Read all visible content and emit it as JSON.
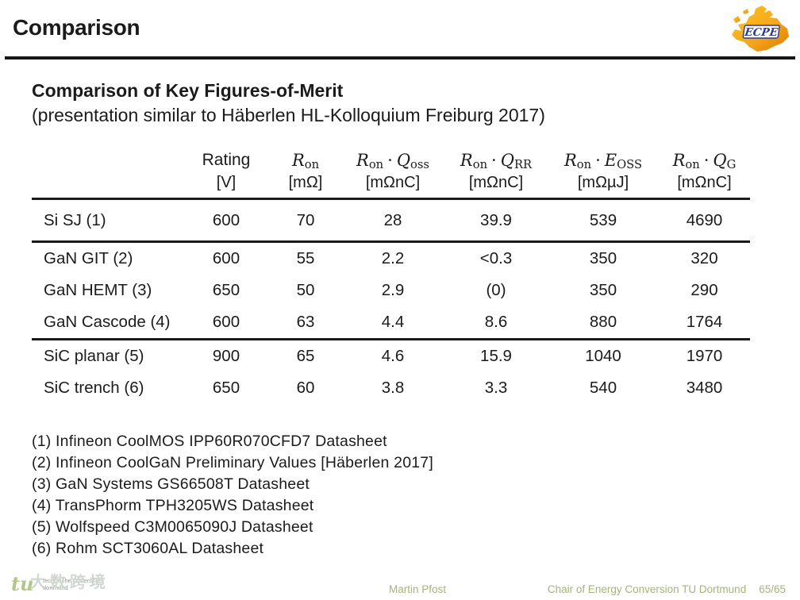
{
  "header": {
    "title": "Comparison"
  },
  "logo": {
    "text": "ECPE",
    "orange_light": "#fcc51f",
    "orange_dark": "#e07c00",
    "blue": "#2a3b8f"
  },
  "subtitle": {
    "line1": "Comparison of Key Figures-of-Merit",
    "line2": "(presentation similar to Häberlen HL-Kolloquium Freiburg 2017)"
  },
  "chart_data": {
    "type": "table",
    "title": "Comparison of Key Figures-of-Merit",
    "columns": [
      "Rating [V]",
      "Ron [mΩ]",
      "Ron·Qoss [mΩnC]",
      "Ron·QRR [mΩnC]",
      "Ron·EOSS [mΩµJ]",
      "Ron·QG [mΩnC]"
    ],
    "rows": [
      {
        "device": "Si SJ (1)",
        "values": [
          "600",
          "70",
          "28",
          "39.9",
          "539",
          "4690"
        ]
      },
      {
        "device": "GaN GIT (2)",
        "values": [
          "600",
          "55",
          "2.2",
          "<0.3",
          "350",
          "320"
        ]
      },
      {
        "device": "GaN HEMT (3)",
        "values": [
          "650",
          "50",
          "2.9",
          "(0)",
          "350",
          "290"
        ]
      },
      {
        "device": "GaN Cascode (4)",
        "values": [
          "600",
          "63",
          "4.4",
          "8.6",
          "880",
          "1764"
        ]
      },
      {
        "device": "SiC planar (5)",
        "values": [
          "900",
          "65",
          "4.6",
          "15.9",
          "1040",
          "1970"
        ]
      },
      {
        "device": "SiC trench (6)",
        "values": [
          "650",
          "60",
          "3.8",
          "3.3",
          "540",
          "3480"
        ]
      }
    ]
  },
  "table": {
    "columns": [
      {
        "label": "Rating",
        "unit": "[V]",
        "parts": []
      },
      {
        "unit": "[mΩ]",
        "parts": [
          {
            "t": "R",
            "sub": "on"
          }
        ]
      },
      {
        "unit": "[mΩnC]",
        "parts": [
          {
            "t": "R",
            "sub": "on"
          },
          {
            "dot": true
          },
          {
            "t": "Q",
            "sub": "oss"
          }
        ]
      },
      {
        "unit": "[mΩnC]",
        "parts": [
          {
            "t": "R",
            "sub": "on"
          },
          {
            "dot": true
          },
          {
            "t": "Q",
            "sub": "RR"
          }
        ]
      },
      {
        "unit": "[mΩµJ]",
        "parts": [
          {
            "t": "R",
            "sub": "on"
          },
          {
            "dot": true
          },
          {
            "t": "E",
            "sub": "OSS"
          }
        ]
      },
      {
        "unit": "[mΩnC]",
        "parts": [
          {
            "t": "R",
            "sub": "on"
          },
          {
            "dot": true
          },
          {
            "t": "Q",
            "sub": "G"
          }
        ]
      }
    ],
    "rows": [
      {
        "label": "Si SJ (1)",
        "values": [
          "600",
          "70",
          "28",
          "39.9",
          "539",
          "4690"
        ],
        "sep": false,
        "tall": true
      },
      {
        "label": "GaN GIT (2)",
        "values": [
          "600",
          "55",
          "2.2",
          "<0.3",
          "350",
          "320"
        ],
        "sep": true,
        "tall": false
      },
      {
        "label": "GaN HEMT (3)",
        "values": [
          "650",
          "50",
          "2.9",
          "(0)",
          "350",
          "290"
        ],
        "sep": false,
        "tall": false
      },
      {
        "label": "GaN Cascode (4)",
        "values": [
          "600",
          "63",
          "4.4",
          "8.6",
          "880",
          "1764"
        ],
        "sep": false,
        "tall": false
      },
      {
        "label": "SiC planar (5)",
        "values": [
          "900",
          "65",
          "4.6",
          "15.9",
          "1040",
          "1970"
        ],
        "sep": true,
        "tall": false
      },
      {
        "label": "SiC trench (6)",
        "values": [
          "650",
          "60",
          "3.8",
          "3.3",
          "540",
          "3480"
        ],
        "sep": false,
        "tall": false
      }
    ]
  },
  "footnotes": [
    "(1) Infineon CoolMOS IPP60R070CFD7 Datasheet",
    "(2) Infineon CoolGaN Preliminary Values [Häberlen 2017]",
    "(3) GaN Systems GS66508T Datasheet",
    "(4) TransPhorm TPH3205WS Datasheet",
    "(5) Wolfspeed C3M0065090J Datasheet",
    "(6) Rohm SCT3060AL Datasheet"
  ],
  "footer": {
    "author": "Martin Pfost",
    "affiliation": "Chair of Energy Conversion TU Dortmund",
    "page": "65/65",
    "accent_color": "#a6b37c"
  },
  "watermark": {
    "tu_logo": "tu",
    "uni_line1": "technische universität",
    "uni_line2": "dortmund",
    "overlay": "大数跨境"
  }
}
